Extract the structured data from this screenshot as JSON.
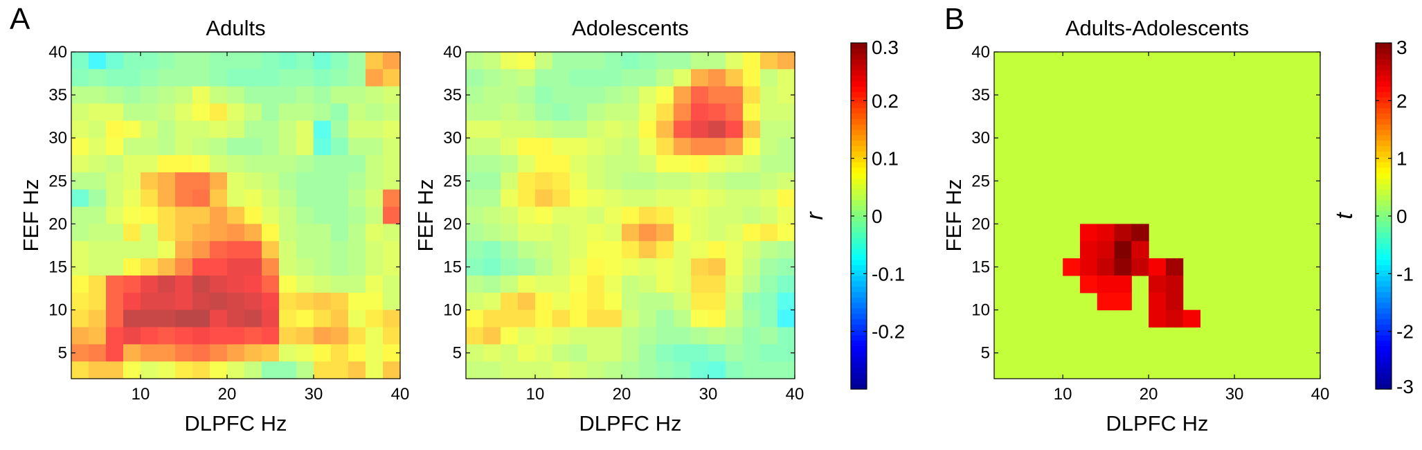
{
  "figure": {
    "panel_letters": [
      "A",
      "B"
    ],
    "colormap": [
      "#00008f",
      "#0000ff",
      "#0080ff",
      "#00ffff",
      "#80ff80",
      "#ffff00",
      "#ff8000",
      "#ff0000",
      "#800000"
    ]
  },
  "chart_data": [
    {
      "type": "heatmap",
      "title": "Adults",
      "xlabel": "DLPFC Hz",
      "ylabel": "FEF Hz",
      "xlim": [
        2,
        40
      ],
      "ylim": [
        2,
        40
      ],
      "xticks": [
        10,
        20,
        30,
        40
      ],
      "yticks": [
        5,
        10,
        15,
        20,
        25,
        30,
        35,
        40
      ],
      "clim": [
        -0.3,
        0.3
      ],
      "x_centers": [
        3,
        5,
        7,
        9,
        11,
        13,
        15,
        17,
        19,
        21,
        23,
        25,
        27,
        29,
        31,
        33,
        35,
        37,
        39
      ],
      "y_centers": [
        3,
        5,
        7,
        9,
        11,
        13,
        15,
        17,
        19,
        21,
        23,
        25,
        27,
        29,
        31,
        33,
        35,
        37,
        39
      ],
      "values_rows_top_to_bottom": [
        [
          -0.03,
          -0.08,
          -0.04,
          -0.02,
          -0.02,
          -0.01,
          0.0,
          0.0,
          -0.01,
          -0.01,
          -0.01,
          -0.02,
          -0.03,
          -0.02,
          -0.04,
          -0.02,
          0.0,
          0.12,
          0.15
        ],
        [
          -0.02,
          -0.01,
          -0.02,
          -0.02,
          -0.01,
          0.0,
          0.0,
          0.0,
          -0.01,
          -0.02,
          -0.02,
          -0.02,
          -0.01,
          -0.01,
          -0.02,
          -0.01,
          0.0,
          0.15,
          0.12
        ],
        [
          0.02,
          0.02,
          0.01,
          0.0,
          0.01,
          0.02,
          0.03,
          0.06,
          0.03,
          0.02,
          0.0,
          0.0,
          0.0,
          0.01,
          0.0,
          0.02,
          0.02,
          0.03,
          0.04
        ],
        [
          0.04,
          0.05,
          0.05,
          0.02,
          0.02,
          0.03,
          0.05,
          0.07,
          0.09,
          0.05,
          0.03,
          0.0,
          0.02,
          0.02,
          0.01,
          -0.01,
          0.03,
          0.02,
          0.03
        ],
        [
          0.05,
          0.04,
          0.08,
          0.07,
          0.04,
          0.02,
          0.04,
          0.04,
          0.05,
          0.04,
          0.01,
          0.01,
          0.03,
          0.05,
          -0.06,
          0.0,
          0.04,
          0.04,
          0.05
        ],
        [
          0.07,
          0.05,
          0.07,
          0.03,
          0.03,
          0.02,
          0.04,
          0.03,
          0.02,
          0.0,
          0.0,
          0.01,
          0.03,
          0.05,
          -0.05,
          -0.02,
          0.02,
          0.02,
          0.04
        ],
        [
          0.05,
          0.04,
          0.03,
          0.05,
          0.05,
          0.08,
          0.08,
          0.07,
          0.04,
          0.03,
          0.02,
          0.02,
          0.02,
          0.01,
          0.0,
          0.0,
          0.0,
          0.03,
          0.04
        ],
        [
          0.02,
          0.02,
          0.04,
          0.05,
          0.12,
          0.14,
          0.18,
          0.18,
          0.14,
          0.05,
          0.04,
          0.03,
          0.01,
          0.0,
          0.0,
          0.0,
          0.01,
          0.03,
          0.04
        ],
        [
          -0.04,
          0.0,
          0.04,
          0.06,
          0.1,
          0.14,
          0.18,
          0.19,
          0.12,
          0.05,
          0.06,
          0.04,
          0.02,
          0.0,
          0.0,
          0.0,
          0.02,
          0.04,
          0.18
        ],
        [
          0.02,
          0.02,
          0.05,
          0.07,
          0.08,
          0.1,
          0.12,
          0.12,
          0.15,
          0.12,
          0.08,
          0.05,
          0.03,
          0.01,
          0.0,
          0.0,
          0.01,
          0.03,
          0.2
        ],
        [
          0.02,
          0.03,
          0.03,
          0.09,
          0.04,
          0.1,
          0.12,
          0.14,
          0.15,
          0.16,
          0.14,
          0.08,
          0.03,
          0.02,
          0.02,
          0.0,
          0.02,
          0.05,
          0.04
        ],
        [
          0.05,
          0.04,
          0.04,
          0.04,
          0.04,
          0.06,
          0.14,
          0.16,
          0.2,
          0.21,
          0.21,
          0.12,
          0.04,
          0.02,
          0.02,
          0.01,
          0.02,
          0.04,
          0.05
        ],
        [
          0.05,
          0.04,
          0.04,
          0.08,
          0.1,
          0.13,
          0.17,
          0.22,
          0.22,
          0.24,
          0.24,
          0.17,
          0.04,
          0.03,
          0.02,
          0.01,
          0.02,
          0.04,
          0.05
        ],
        [
          0.08,
          0.1,
          0.2,
          0.21,
          0.24,
          0.26,
          0.24,
          0.27,
          0.25,
          0.24,
          0.23,
          0.2,
          0.07,
          0.05,
          0.04,
          0.03,
          0.03,
          0.06,
          0.04
        ],
        [
          0.09,
          0.1,
          0.2,
          0.23,
          0.25,
          0.25,
          0.24,
          0.26,
          0.27,
          0.26,
          0.25,
          0.23,
          0.1,
          0.11,
          0.12,
          0.11,
          0.07,
          0.07,
          0.04
        ],
        [
          0.1,
          0.12,
          0.2,
          0.27,
          0.27,
          0.27,
          0.28,
          0.28,
          0.24,
          0.26,
          0.27,
          0.24,
          0.09,
          0.08,
          0.1,
          0.12,
          0.06,
          0.09,
          0.11
        ],
        [
          0.14,
          0.13,
          0.22,
          0.24,
          0.22,
          0.21,
          0.22,
          0.23,
          0.22,
          0.22,
          0.21,
          0.22,
          0.11,
          0.12,
          0.15,
          0.14,
          0.1,
          0.06,
          0.1
        ],
        [
          0.17,
          0.18,
          0.22,
          0.14,
          0.16,
          0.16,
          0.18,
          0.19,
          0.17,
          0.15,
          0.13,
          0.12,
          0.05,
          0.06,
          0.08,
          0.1,
          0.08,
          0.06,
          0.08
        ],
        [
          0.1,
          0.12,
          0.12,
          0.07,
          0.05,
          0.06,
          0.09,
          0.1,
          0.07,
          0.05,
          0.03,
          -0.01,
          -0.01,
          0.02,
          0.1,
          0.1,
          0.12,
          0.06,
          0.12
        ]
      ]
    },
    {
      "type": "heatmap",
      "title": "Adolescents",
      "xlabel": "DLPFC Hz",
      "ylabel": "FEF Hz",
      "xlim": [
        2,
        40
      ],
      "ylim": [
        2,
        40
      ],
      "xticks": [
        10,
        20,
        30,
        40
      ],
      "yticks": [
        5,
        10,
        15,
        20,
        25,
        30,
        35,
        40
      ],
      "clim": [
        -0.3,
        0.3
      ],
      "x_centers": [
        3,
        5,
        7,
        9,
        11,
        13,
        15,
        17,
        19,
        21,
        23,
        25,
        27,
        29,
        31,
        33,
        35,
        37,
        39
      ],
      "y_centers": [
        3,
        5,
        7,
        9,
        11,
        13,
        15,
        17,
        19,
        21,
        23,
        25,
        27,
        29,
        31,
        33,
        35,
        37,
        39
      ],
      "values_rows_top_to_bottom": [
        [
          0.02,
          0.03,
          0.06,
          0.07,
          0.03,
          0.0,
          0.0,
          0.0,
          -0.01,
          -0.02,
          -0.01,
          0.0,
          0.0,
          0.02,
          0.02,
          0.05,
          0.08,
          0.12,
          0.14
        ],
        [
          0.0,
          0.01,
          0.02,
          0.03,
          0.0,
          0.0,
          -0.01,
          -0.01,
          -0.01,
          0.0,
          0.0,
          0.02,
          0.05,
          0.14,
          0.16,
          0.12,
          0.08,
          0.03,
          0.05
        ],
        [
          0.01,
          0.02,
          0.02,
          0.01,
          -0.01,
          0.0,
          0.0,
          0.0,
          0.01,
          0.02,
          0.05,
          0.07,
          0.15,
          0.2,
          0.18,
          0.18,
          0.1,
          0.04,
          0.05
        ],
        [
          0.02,
          0.02,
          0.03,
          0.02,
          0.0,
          -0.01,
          0.0,
          0.02,
          0.03,
          0.03,
          0.06,
          0.1,
          0.17,
          0.22,
          0.21,
          0.19,
          0.08,
          0.04,
          0.04
        ],
        [
          0.05,
          0.05,
          0.04,
          0.04,
          0.03,
          0.02,
          0.02,
          0.04,
          0.05,
          0.04,
          0.08,
          0.13,
          0.21,
          0.24,
          0.26,
          0.22,
          0.12,
          0.03,
          0.03
        ],
        [
          0.03,
          0.03,
          0.05,
          0.08,
          0.08,
          0.06,
          0.06,
          0.05,
          0.04,
          0.03,
          0.06,
          0.1,
          0.15,
          0.17,
          0.17,
          0.15,
          0.07,
          0.03,
          0.02
        ],
        [
          0.01,
          0.01,
          0.02,
          0.05,
          0.08,
          0.08,
          0.05,
          0.04,
          0.03,
          0.03,
          0.04,
          0.07,
          0.07,
          0.08,
          0.06,
          0.05,
          0.04,
          0.02,
          0.02
        ],
        [
          0.0,
          0.0,
          0.04,
          0.09,
          0.1,
          0.09,
          0.06,
          0.04,
          0.03,
          0.02,
          0.02,
          0.03,
          0.03,
          0.04,
          0.03,
          0.02,
          0.02,
          0.03,
          0.04
        ],
        [
          0.01,
          0.01,
          0.06,
          0.09,
          0.12,
          0.1,
          0.07,
          0.06,
          0.05,
          0.04,
          0.04,
          0.05,
          0.05,
          0.06,
          0.05,
          0.04,
          0.04,
          0.05,
          0.08
        ],
        [
          0.02,
          0.03,
          0.04,
          0.06,
          0.07,
          0.05,
          0.05,
          0.04,
          0.06,
          0.08,
          0.1,
          0.09,
          0.06,
          0.05,
          0.04,
          0.04,
          0.03,
          0.04,
          0.06
        ],
        [
          0.01,
          0.02,
          0.03,
          0.05,
          0.05,
          0.04,
          0.05,
          0.06,
          0.05,
          0.13,
          0.16,
          0.14,
          0.07,
          0.05,
          0.04,
          0.05,
          0.08,
          0.09,
          0.07
        ],
        [
          -0.01,
          -0.02,
          0.0,
          0.02,
          0.03,
          0.04,
          0.05,
          0.07,
          0.07,
          0.09,
          0.12,
          0.09,
          0.05,
          0.06,
          0.08,
          0.06,
          0.04,
          0.02,
          0.01
        ],
        [
          -0.02,
          -0.03,
          -0.01,
          0.0,
          0.02,
          0.04,
          0.06,
          0.08,
          0.07,
          0.06,
          0.05,
          0.06,
          0.05,
          0.11,
          0.12,
          0.06,
          0.03,
          0.0,
          -0.01
        ],
        [
          0.02,
          0.01,
          0.03,
          0.06,
          0.05,
          0.05,
          0.07,
          0.09,
          0.06,
          0.03,
          0.04,
          0.06,
          0.05,
          0.1,
          0.1,
          0.05,
          0.02,
          -0.01,
          -0.03
        ],
        [
          0.04,
          0.05,
          0.1,
          0.12,
          0.08,
          0.06,
          0.08,
          0.09,
          0.07,
          0.03,
          0.02,
          0.02,
          0.04,
          0.09,
          0.09,
          0.04,
          -0.01,
          -0.02,
          -0.06
        ],
        [
          0.08,
          0.1,
          0.1,
          0.1,
          0.08,
          0.1,
          0.08,
          0.1,
          0.1,
          0.04,
          0.02,
          0.0,
          0.02,
          0.07,
          0.08,
          0.03,
          0.0,
          -0.02,
          -0.08
        ],
        [
          0.1,
          0.12,
          0.07,
          0.05,
          0.06,
          0.05,
          0.04,
          0.04,
          0.04,
          0.02,
          0.01,
          0.0,
          0.0,
          0.01,
          0.02,
          0.01,
          -0.01,
          0.0,
          -0.02
        ],
        [
          0.04,
          0.05,
          0.04,
          0.06,
          0.05,
          0.03,
          0.02,
          0.04,
          0.04,
          0.02,
          0.0,
          -0.02,
          -0.03,
          -0.03,
          -0.02,
          0.0,
          -0.01,
          -0.02,
          -0.02
        ],
        [
          0.03,
          0.03,
          0.04,
          0.04,
          0.04,
          0.05,
          0.04,
          0.03,
          0.02,
          0.01,
          0.0,
          -0.01,
          -0.02,
          -0.04,
          -0.05,
          -0.02,
          -0.01,
          -0.01,
          -0.01
        ]
      ]
    },
    {
      "type": "heatmap",
      "title": "Adults-Adolescents",
      "xlabel": "DLPFC Hz",
      "ylabel": "FEF Hz",
      "xlim": [
        2,
        40
      ],
      "ylim": [
        2,
        40
      ],
      "xticks": [
        10,
        20,
        30,
        40
      ],
      "yticks": [
        5,
        10,
        15,
        20,
        25,
        30,
        35,
        40
      ],
      "clim": [
        -3,
        3
      ],
      "background_value": 0.4,
      "cells": [
        {
          "x": 13,
          "y": 19,
          "v": 2.3
        },
        {
          "x": 15,
          "y": 19,
          "v": 2.4
        },
        {
          "x": 17,
          "y": 19,
          "v": 2.7
        },
        {
          "x": 19,
          "y": 19,
          "v": 2.9
        },
        {
          "x": 13,
          "y": 17,
          "v": 2.4
        },
        {
          "x": 15,
          "y": 17,
          "v": 2.5
        },
        {
          "x": 17,
          "y": 17,
          "v": 3.0
        },
        {
          "x": 19,
          "y": 17,
          "v": 2.5
        },
        {
          "x": 11,
          "y": 15,
          "v": 2.2
        },
        {
          "x": 13,
          "y": 15,
          "v": 2.4
        },
        {
          "x": 15,
          "y": 15,
          "v": 2.6
        },
        {
          "x": 17,
          "y": 15,
          "v": 2.9
        },
        {
          "x": 19,
          "y": 15,
          "v": 2.6
        },
        {
          "x": 21,
          "y": 15,
          "v": 2.3
        },
        {
          "x": 23,
          "y": 15,
          "v": 2.8
        },
        {
          "x": 13,
          "y": 13,
          "v": 2.2
        },
        {
          "x": 15,
          "y": 13,
          "v": 2.3
        },
        {
          "x": 17,
          "y": 13,
          "v": 2.3
        },
        {
          "x": 21,
          "y": 13,
          "v": 2.5
        },
        {
          "x": 23,
          "y": 13,
          "v": 2.6
        },
        {
          "x": 15,
          "y": 11,
          "v": 2.2
        },
        {
          "x": 17,
          "y": 11,
          "v": 2.2
        },
        {
          "x": 21,
          "y": 11,
          "v": 2.4
        },
        {
          "x": 23,
          "y": 11,
          "v": 2.6
        },
        {
          "x": 21,
          "y": 9,
          "v": 2.4
        },
        {
          "x": 23,
          "y": 9,
          "v": 2.5
        },
        {
          "x": 25,
          "y": 9,
          "v": 2.3
        }
      ]
    }
  ],
  "colorbars": [
    {
      "label": "r",
      "clim": [
        -0.3,
        0.3
      ],
      "ticks": [
        -0.2,
        -0.1,
        0,
        0.1,
        0.2,
        0.3
      ],
      "tick_labels": [
        "-0.2",
        "-0.1",
        "0",
        "0.1",
        "0.2",
        "0.3"
      ]
    },
    {
      "label": "t",
      "clim": [
        -3,
        3
      ],
      "ticks": [
        -3,
        -2,
        -1,
        0,
        1,
        2,
        3
      ],
      "tick_labels": [
        "-3",
        "-2",
        "-1",
        "0",
        "1",
        "2",
        "3"
      ]
    }
  ]
}
